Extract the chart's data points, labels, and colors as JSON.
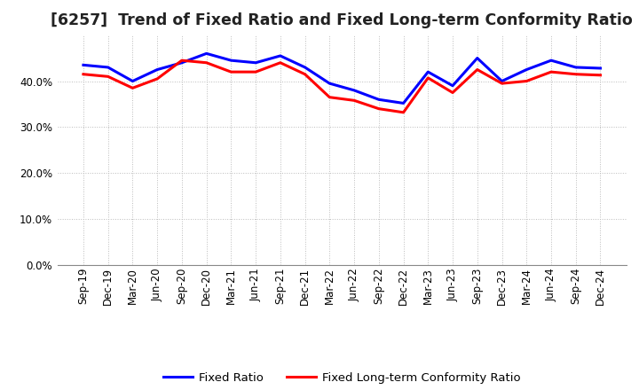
{
  "title": "[6257]  Trend of Fixed Ratio and Fixed Long-term Conformity Ratio",
  "x_labels": [
    "Sep-19",
    "Dec-19",
    "Mar-20",
    "Jun-20",
    "Sep-20",
    "Dec-20",
    "Mar-21",
    "Jun-21",
    "Sep-21",
    "Dec-21",
    "Mar-22",
    "Jun-22",
    "Sep-22",
    "Dec-22",
    "Mar-23",
    "Jun-23",
    "Sep-23",
    "Dec-23",
    "Mar-24",
    "Jun-24",
    "Sep-24",
    "Dec-24"
  ],
  "fixed_ratio": [
    0.435,
    0.43,
    0.4,
    0.425,
    0.44,
    0.46,
    0.445,
    0.44,
    0.455,
    0.43,
    0.395,
    0.38,
    0.36,
    0.352,
    0.42,
    0.39,
    0.45,
    0.4,
    0.425,
    0.445,
    0.43,
    0.428
  ],
  "fixed_lt_ratio": [
    0.415,
    0.41,
    0.385,
    0.405,
    0.445,
    0.44,
    0.42,
    0.42,
    0.44,
    0.415,
    0.365,
    0.358,
    0.34,
    0.332,
    0.407,
    0.375,
    0.425,
    0.395,
    0.4,
    0.42,
    0.415,
    0.413
  ],
  "fixed_ratio_color": "#0000FF",
  "fixed_lt_ratio_color": "#FF0000",
  "background_color": "#FFFFFF",
  "grid_color": "#BBBBBB",
  "ylim_low": 0.0,
  "ylim_high": 0.5,
  "yticks": [
    0.0,
    0.1,
    0.2,
    0.3,
    0.4
  ],
  "line_width": 2.2,
  "legend_fixed_ratio": "Fixed Ratio",
  "legend_fixed_lt_ratio": "Fixed Long-term Conformity Ratio",
  "title_fontsize": 12.5,
  "axis_fontsize": 8.5,
  "legend_fontsize": 9.5
}
